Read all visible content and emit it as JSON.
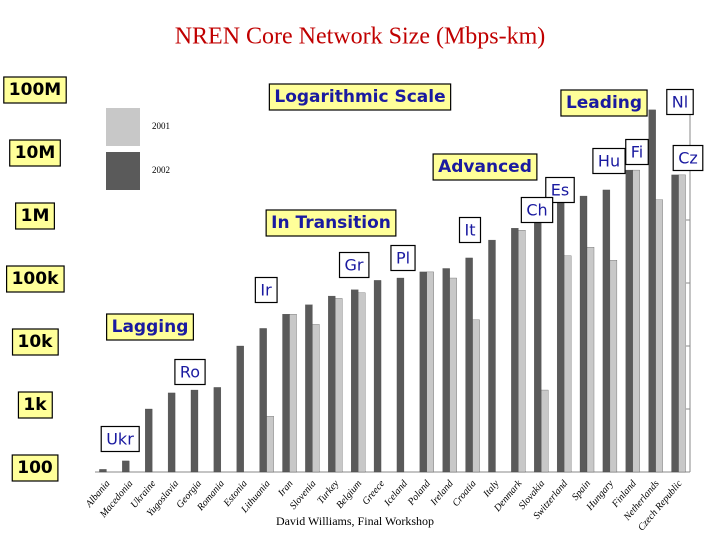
{
  "chart_data": {
    "type": "bar",
    "title": "NREN Core Network Size (Mbps-km)",
    "log_scale": true,
    "categories": [
      "Albania",
      "Macedonia",
      "Ukraine",
      "Yugoslavia",
      "Georgia",
      "Romania",
      "Estonia",
      "Lithuania",
      "Iran",
      "Slovenia",
      "Turkey",
      "Belgium",
      "Greece",
      "Iceland",
      "Poland",
      "Ireland",
      "Croatia",
      "Italy",
      "Denmark",
      "Slovakia",
      "Switzerland",
      "Spain",
      "Hungary",
      "Finland",
      "Netherlands",
      "Czech Republic"
    ],
    "series": [
      {
        "name": "2001",
        "color": "#c8c8c8",
        "values": [
          null,
          null,
          null,
          null,
          null,
          null,
          null,
          770,
          32000,
          22000,
          57000,
          70000,
          null,
          null,
          150000,
          120000,
          26000,
          null,
          690000,
          2000,
          270000,
          370000,
          230000,
          6200000,
          2100000,
          5200000
        ]
      },
      {
        "name": "2002",
        "color": "#5a5a5a",
        "values": [
          110,
          150,
          1000,
          1800,
          2000,
          2200,
          10000,
          19000,
          32000,
          45000,
          62000,
          78000,
          110000,
          120000,
          150000,
          170000,
          250000,
          480000,
          740000,
          1600000,
          1900000,
          2400000,
          3000000,
          6200000,
          56000000,
          5200000
        ]
      }
    ],
    "ylim": [
      100,
      100000000
    ],
    "yticks": [
      {
        "value": 100000000,
        "label": "100M"
      },
      {
        "value": 10000000,
        "label": "10M"
      },
      {
        "value": 1000000,
        "label": "1M"
      },
      {
        "value": 100000,
        "label": "100k"
      },
      {
        "value": 10000,
        "label": "10k"
      },
      {
        "value": 1000,
        "label": "1k"
      },
      100
    ],
    "annotations": {
      "groups": [
        "Logarithmic Scale",
        "Leading",
        "Advanced",
        "In Transition",
        "Lagging"
      ],
      "codes": [
        "Nl",
        "Fi",
        "Hu",
        "Cz",
        "Es",
        "Ch",
        "It",
        "Pl",
        "Gr",
        "Ir",
        "Ro",
        "Ukr"
      ]
    },
    "footer": "David Williams,  Final Workshop"
  }
}
